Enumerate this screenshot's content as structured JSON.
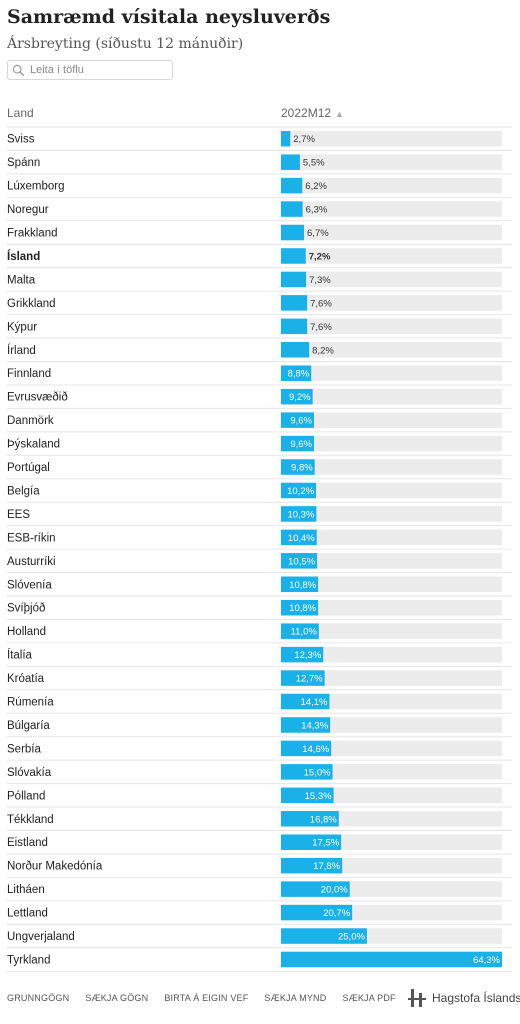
{
  "title": "Samræmd vísitala neysluverðs",
  "subtitle": "Ársbreyting (síðustu 12 mánuðir)",
  "search": {
    "placeholder": "Leita í töflu"
  },
  "table": {
    "col_land": "Land",
    "col_value": "2022M12",
    "sort_arrow": "▲"
  },
  "chart_data": {
    "type": "bar",
    "orientation": "horizontal",
    "value_column": "2022M12",
    "highlight": "Ísland",
    "bar_color": "#1ab0e8",
    "track_color": "#ececec",
    "xlim": [
      0,
      64.3
    ],
    "categories": [
      "Sviss",
      "Spánn",
      "Lúxemborg",
      "Noregur",
      "Frakkland",
      "Ísland",
      "Malta",
      "Grikkland",
      "Kýpur",
      "Írland",
      "Finnland",
      "Evrusvæðið",
      "Danmörk",
      "Þýskaland",
      "Portúgal",
      "Belgía",
      "EES",
      "ESB-ríkin",
      "Austurríki",
      "Slóvenía",
      "Svíþjóð",
      "Holland",
      "Ítalía",
      "Króatía",
      "Rúmenía",
      "Búlgaría",
      "Serbía",
      "Slóvakía",
      "Pólland",
      "Tékkland",
      "Eistland",
      "Norður Makedónía",
      "Litháen",
      "Lettland",
      "Ungverjaland",
      "Tyrkland"
    ],
    "values": [
      2.7,
      5.5,
      6.2,
      6.3,
      6.7,
      7.2,
      7.3,
      7.6,
      7.6,
      8.2,
      8.8,
      9.2,
      9.6,
      9.6,
      9.8,
      10.2,
      10.3,
      10.4,
      10.5,
      10.8,
      10.8,
      11.0,
      12.3,
      12.7,
      14.1,
      14.3,
      14.6,
      15.0,
      15.3,
      16.8,
      17.5,
      17.8,
      20.0,
      20.7,
      25.0,
      64.3
    ],
    "labels": [
      "2,7%",
      "5,5%",
      "6,2%",
      "6,3%",
      "6,7%",
      "7,2%",
      "7,3%",
      "7,6%",
      "7,6%",
      "8,2%",
      "8,8%",
      "9,2%",
      "9,6%",
      "9,6%",
      "9,8%",
      "10,2%",
      "10,3%",
      "10,4%",
      "10,5%",
      "10,8%",
      "10,8%",
      "11,0%",
      "12,3%",
      "12,7%",
      "14,1%",
      "14,3%",
      "14,6%",
      "15,0%",
      "15,3%",
      "16,8%",
      "17,5%",
      "17,8%",
      "20,0%",
      "20,7%",
      "25,0%",
      "64,3%"
    ]
  },
  "footer": {
    "links": [
      "Grunngögn",
      "Sækja gögn",
      "Birta á eigin vef",
      "Sækja mynd",
      "Sækja PDF"
    ]
  },
  "logo": {
    "text": "Hagstofa Íslands"
  }
}
